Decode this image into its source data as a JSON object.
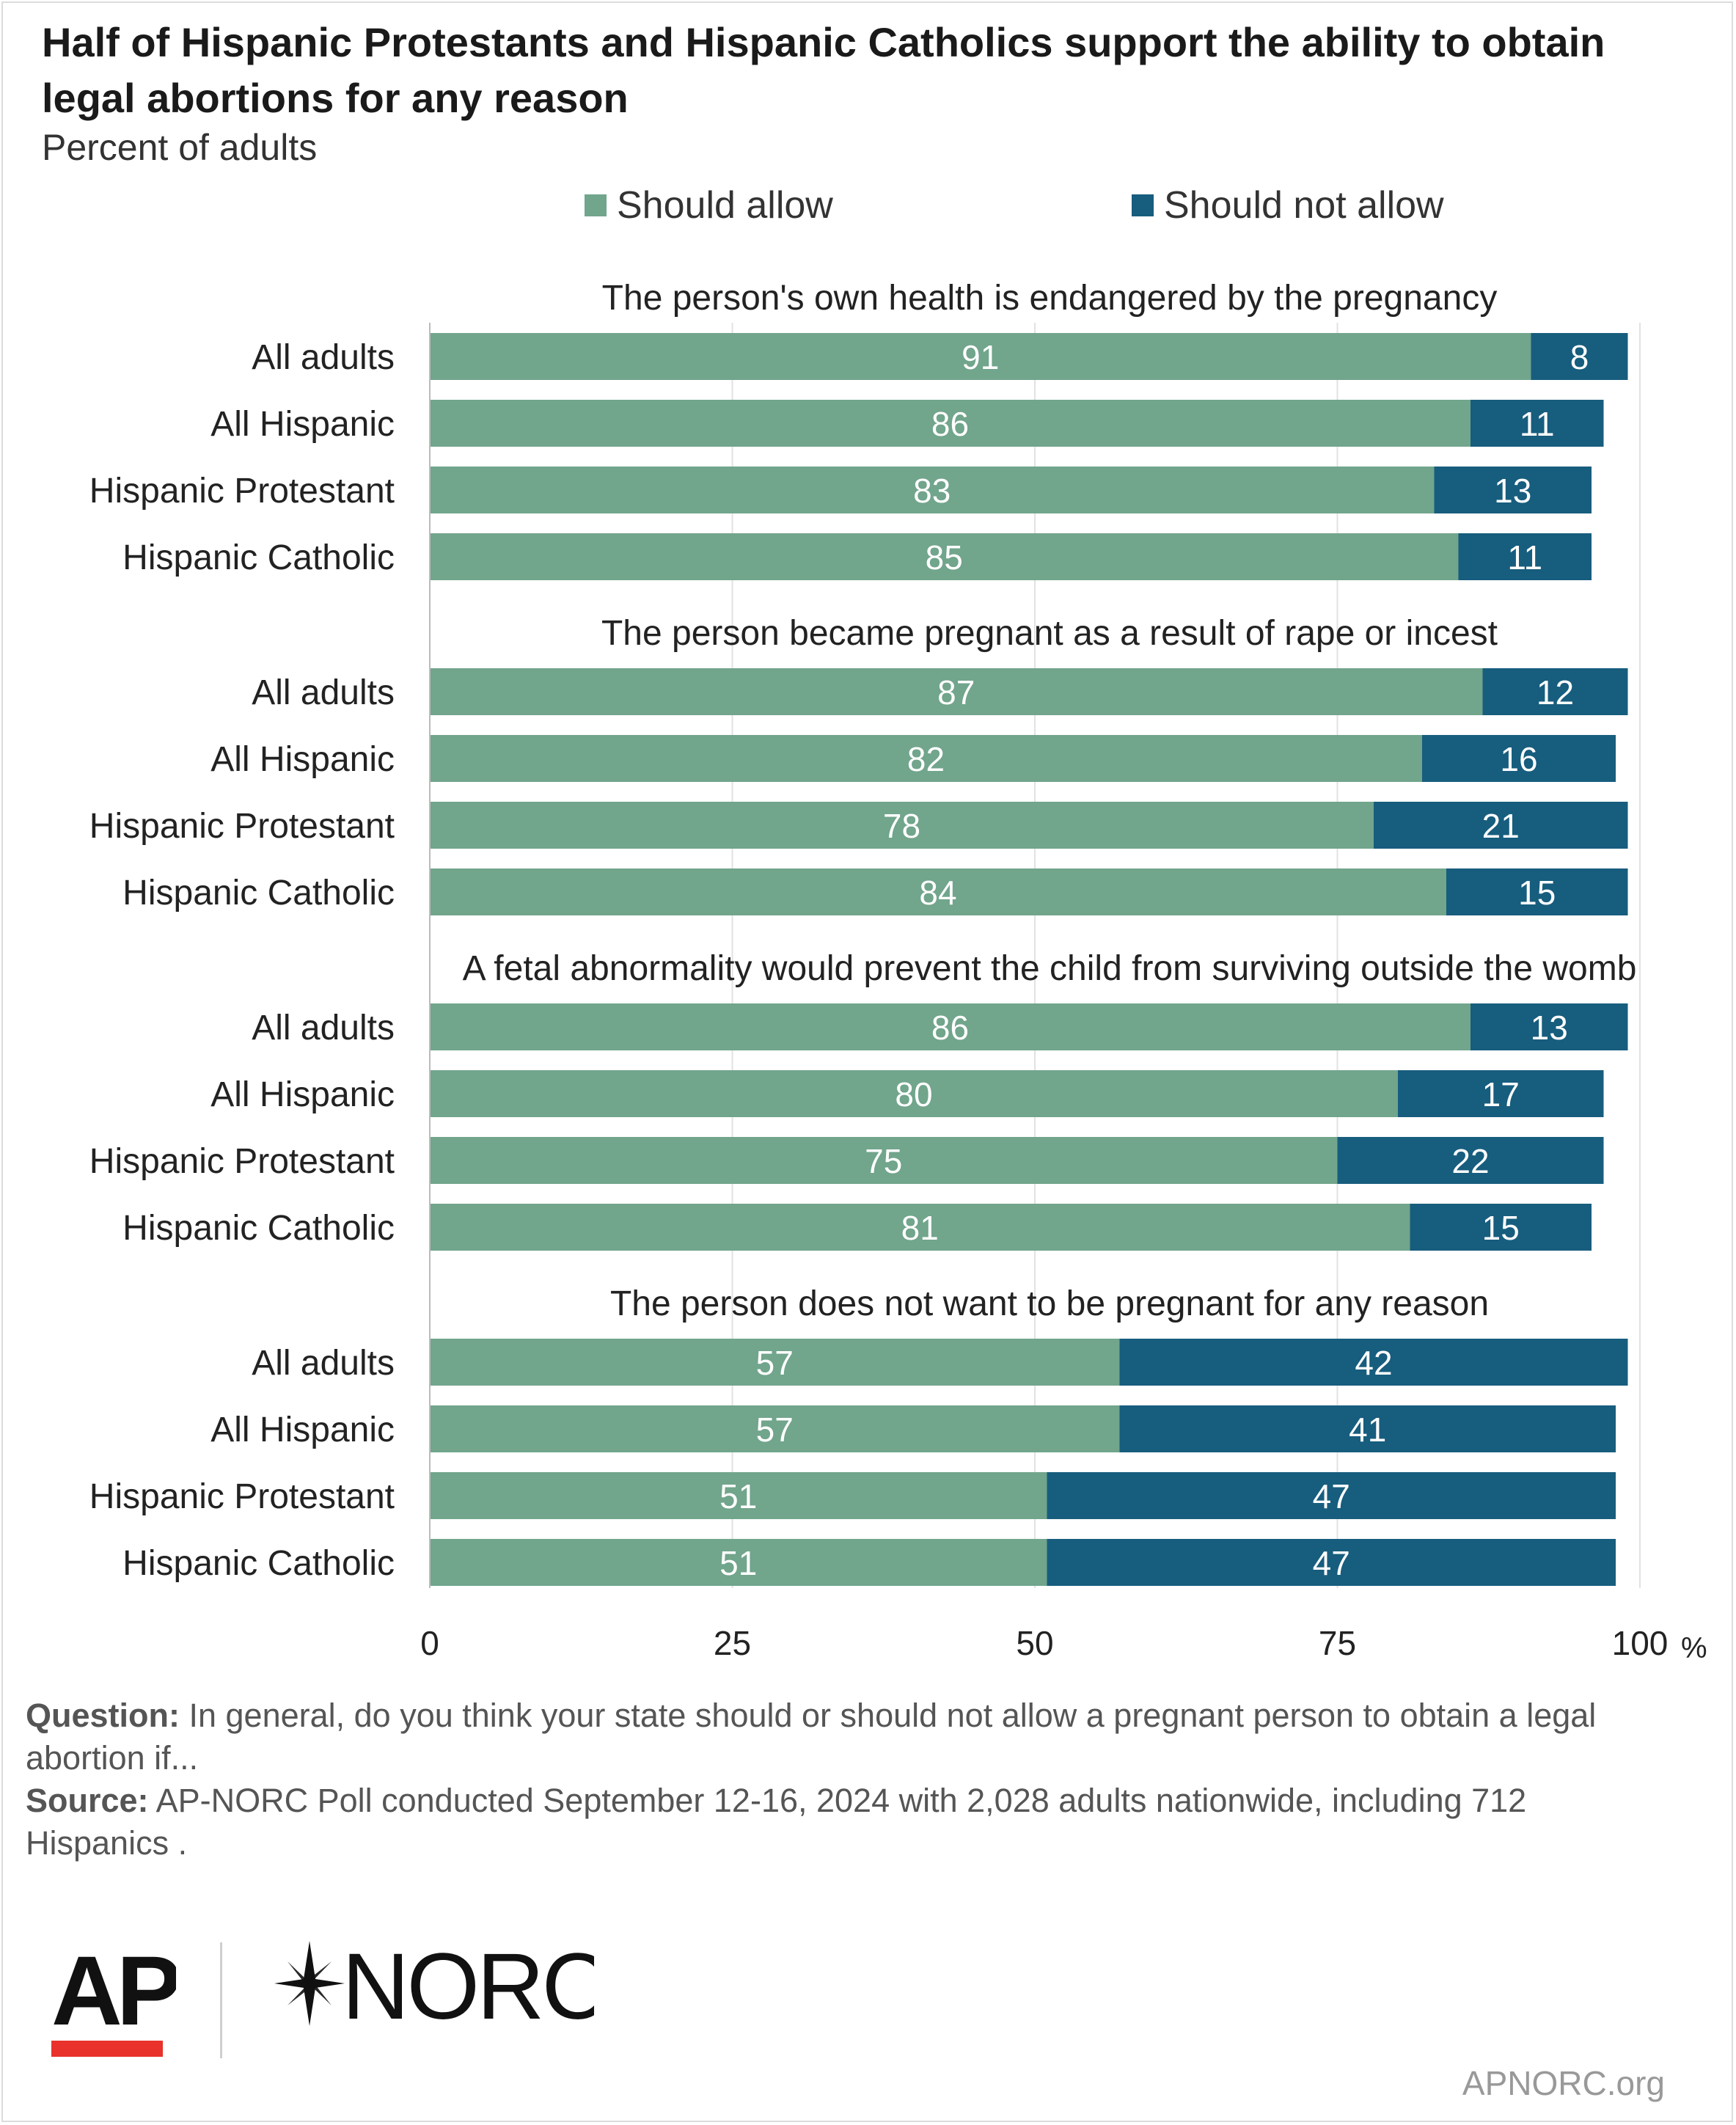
{
  "title": "Half of Hispanic Protestants and Hispanic Catholics support the ability to obtain legal abortions for any reason",
  "subtitle": "Percent of adults",
  "legend": [
    {
      "label": "Should allow",
      "color": "#71a58c"
    },
    {
      "label": "Should not allow",
      "color": "#175d7e"
    }
  ],
  "chart_data": {
    "type": "bar",
    "orientation": "horizontal",
    "stacked": true,
    "xlim": [
      0,
      100
    ],
    "x_ticks": [
      "0",
      "25",
      "50",
      "75",
      "100"
    ],
    "x_unit": "%",
    "groups": [
      {
        "label": "The person's own health is endangered by the pregnancy",
        "categories": [
          "All adults",
          "All Hispanic",
          "Hispanic Protestant",
          "Hispanic Catholic"
        ],
        "series": [
          {
            "name": "Should allow",
            "values": [
              91,
              86,
              83,
              85
            ]
          },
          {
            "name": "Should not allow",
            "values": [
              8,
              11,
              13,
              11
            ]
          }
        ]
      },
      {
        "label": "The person became pregnant as a result of rape or incest",
        "categories": [
          "All adults",
          "All Hispanic",
          "Hispanic Protestant",
          "Hispanic Catholic"
        ],
        "series": [
          {
            "name": "Should allow",
            "values": [
              87,
              82,
              78,
              84
            ]
          },
          {
            "name": "Should not allow",
            "values": [
              12,
              16,
              21,
              15
            ]
          }
        ]
      },
      {
        "label": "A fetal abnormality would prevent the child from surviving outside the womb",
        "categories": [
          "All adults",
          "All Hispanic",
          "Hispanic Protestant",
          "Hispanic Catholic"
        ],
        "series": [
          {
            "name": "Should allow",
            "values": [
              86,
              80,
              75,
              81
            ]
          },
          {
            "name": "Should not allow",
            "values": [
              13,
              17,
              22,
              15
            ]
          }
        ]
      },
      {
        "label": "The person does not want to be pregnant for any reason",
        "categories": [
          "All adults",
          "All Hispanic",
          "Hispanic Protestant",
          "Hispanic Catholic"
        ],
        "series": [
          {
            "name": "Should allow",
            "values": [
              57,
              57,
              51,
              51
            ]
          },
          {
            "name": "Should not allow",
            "values": [
              42,
              41,
              47,
              47
            ]
          }
        ]
      }
    ]
  },
  "notes": {
    "question_label": "Question:",
    "question_text": " In general, do you think your state should or should not allow a pregnant person to obtain a legal abortion if...",
    "source_label": "Source:",
    "source_text": " AP-NORC Poll conducted September 12-16, 2024 with 2,028 adults nationwide, including 712 Hispanics ."
  },
  "logos": {
    "ap": "AP",
    "norc": "NORC",
    "ap_bar_color": "#e8322b"
  },
  "site": "APNORC.org"
}
